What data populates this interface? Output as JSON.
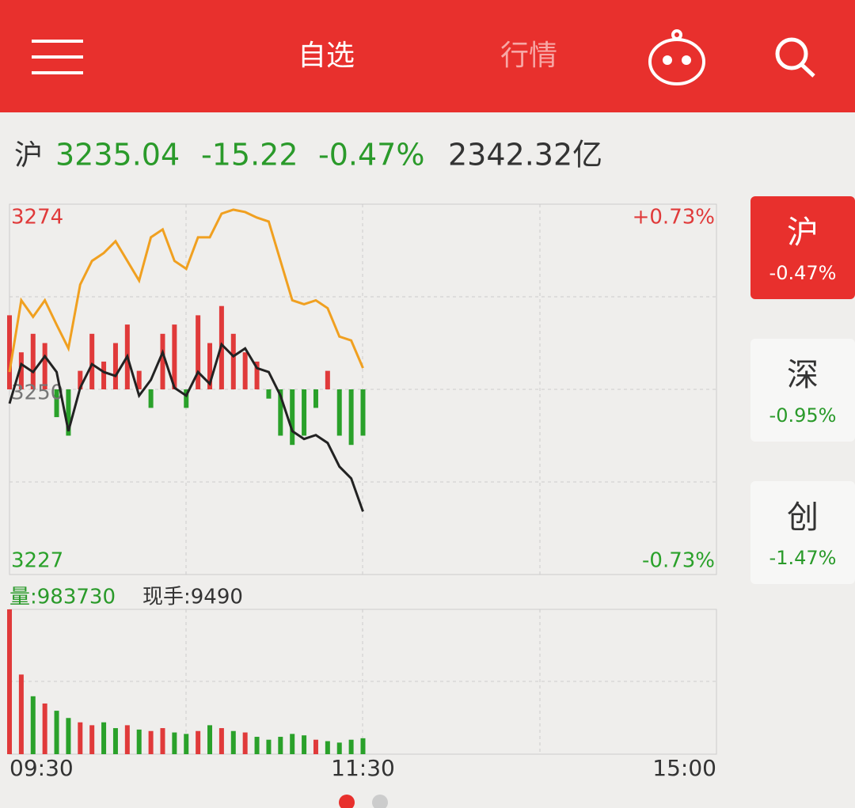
{
  "header": {
    "tabs": [
      "自选",
      "行情"
    ]
  },
  "index_bar": {
    "market": "沪",
    "price": "3235.04",
    "change": "-15.22",
    "change_pct": "-0.47%",
    "turnover": "2342.32亿"
  },
  "side_tabs": [
    {
      "name": "沪",
      "pct": "-0.47%"
    },
    {
      "name": "深",
      "pct": "-0.95%"
    },
    {
      "name": "创",
      "pct": "-1.47%"
    }
  ],
  "chart_data": {
    "type": "line",
    "x": [
      0,
      4,
      8,
      12,
      16,
      20,
      24,
      28,
      32,
      36,
      40,
      44,
      48,
      52,
      56,
      60,
      64,
      68,
      72,
      76,
      80,
      84,
      88,
      92,
      96,
      100,
      104,
      108,
      112,
      116,
      120
    ],
    "xlim": [
      0,
      240
    ],
    "xticks": [
      {
        "value": 0,
        "label": "09:30"
      },
      {
        "value": 120,
        "label": "11:30"
      },
      {
        "value": 240,
        "label": "15:00"
      }
    ],
    "ylim": [
      3227,
      3274
    ],
    "yticks": [
      3274,
      3250,
      3227
    ],
    "y2lim": [
      -0.73,
      0.73
    ],
    "y2ticks": [
      {
        "value": 0.73,
        "label": "+0.73%"
      },
      {
        "value": -0.73,
        "label": "-0.73%"
      }
    ],
    "series": [
      {
        "color": "#222222",
        "values": [
          3248.7,
          3253.7,
          3252.7,
          3254.7,
          3252.7,
          3245.2,
          3250.7,
          3253.7,
          3252.7,
          3252.2,
          3254.7,
          3249.7,
          3251.7,
          3255.2,
          3250.7,
          3249.7,
          3252.7,
          3251.2,
          3256.2,
          3254.7,
          3255.7,
          3253.2,
          3252.7,
          3249.7,
          3245.2,
          3244.2,
          3244.7,
          3243.7,
          3240.7,
          3239.2,
          3235.0
        ]
      },
      {
        "color": "#f0a020",
        "values": [
          3252.7,
          3261.8,
          3259.7,
          3261.8,
          3258.7,
          3255.7,
          3263.8,
          3266.8,
          3267.8,
          3269.3,
          3266.8,
          3264.3,
          3269.8,
          3270.8,
          3266.8,
          3265.8,
          3269.8,
          3269.8,
          3272.8,
          3273.3,
          3273.0,
          3272.3,
          3271.8,
          3266.8,
          3261.8,
          3261.3,
          3261.8,
          3260.8,
          3257.2,
          3256.7,
          3253.2
        ]
      }
    ],
    "bar_lim": [
      -100,
      100
    ],
    "bars": [
      40,
      20,
      30,
      25,
      -15,
      -25,
      10,
      30,
      15,
      25,
      35,
      10,
      -10,
      30,
      35,
      -10,
      40,
      25,
      45,
      30,
      20,
      15,
      -5,
      -25,
      -30,
      -25,
      -10,
      10,
      -25,
      -30,
      -25
    ],
    "up_color": "#e03a3a",
    "down_color": "#2aa12a",
    "volume_label": "量:983730",
    "hand_label": "现手:9490",
    "volume_lim": [
      0,
      100
    ],
    "volume": [
      100,
      55,
      40,
      35,
      30,
      25,
      22,
      20,
      22,
      18,
      20,
      17,
      16,
      18,
      15,
      14,
      16,
      20,
      18,
      16,
      15,
      12,
      10,
      12,
      14,
      13,
      10,
      9,
      8,
      10,
      11
    ]
  }
}
